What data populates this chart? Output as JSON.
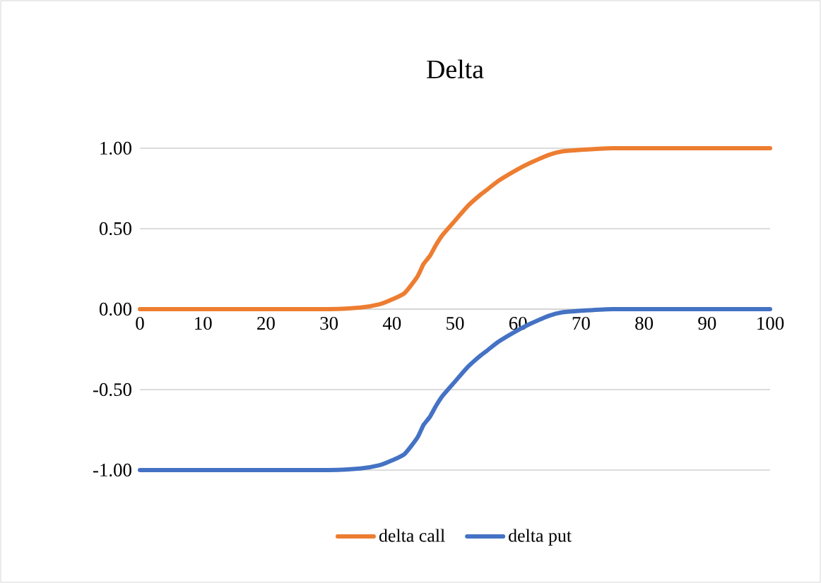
{
  "chart_data": {
    "type": "line",
    "title": "Delta",
    "x": [
      0,
      10,
      20,
      30,
      35,
      38,
      40,
      42,
      44,
      45,
      46,
      47,
      48,
      50,
      52,
      54,
      55,
      57,
      60,
      62,
      65,
      67,
      70,
      75,
      80,
      90,
      100
    ],
    "series": [
      {
        "name": "delta call",
        "color": "#ed7d31",
        "values": [
          0,
          0,
          0,
          0,
          0.01,
          0.03,
          0.06,
          0.1,
          0.2,
          0.28,
          0.33,
          0.4,
          0.46,
          0.55,
          0.64,
          0.71,
          0.74,
          0.8,
          0.87,
          0.91,
          0.96,
          0.98,
          0.99,
          1,
          1,
          1,
          1
        ]
      },
      {
        "name": "delta put",
        "color": "#4472c4",
        "values": [
          -1,
          -1,
          -1,
          -1,
          -0.99,
          -0.97,
          -0.94,
          -0.9,
          -0.8,
          -0.72,
          -0.67,
          -0.6,
          -0.54,
          -0.45,
          -0.36,
          -0.29,
          -0.26,
          -0.2,
          -0.13,
          -0.09,
          -0.04,
          -0.02,
          -0.01,
          0,
          0,
          0,
          0
        ]
      }
    ],
    "xlim": [
      0,
      100
    ],
    "xticks": [
      0,
      10,
      20,
      30,
      40,
      50,
      60,
      70,
      80,
      90,
      100
    ],
    "ylim": [
      -1,
      1
    ],
    "yticks": [
      {
        "value": -1,
        "label": "-1.00"
      },
      {
        "value": -0.5,
        "label": "-0.50"
      },
      {
        "value": 0,
        "label": "0.00"
      },
      {
        "value": 0.5,
        "label": "0.50"
      },
      {
        "value": 1,
        "label": "1.00"
      }
    ],
    "grid": "y",
    "legend": "bottom",
    "marker": "none",
    "line_style": "solid"
  }
}
